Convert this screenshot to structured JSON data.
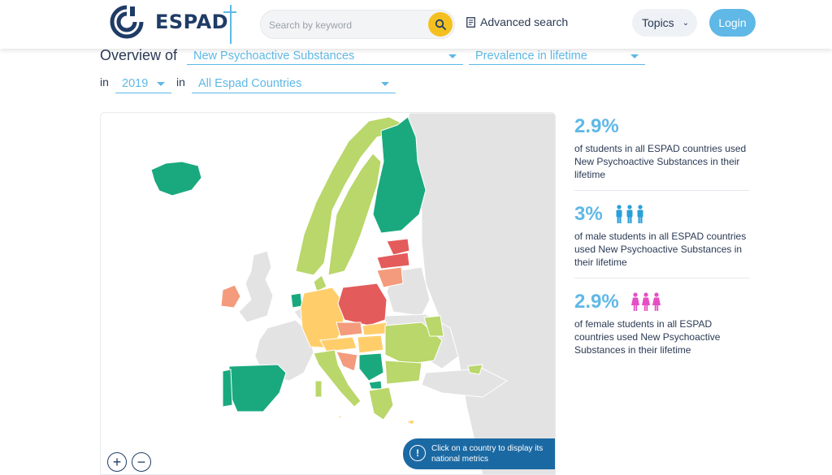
{
  "header": {
    "logo_text": "ESPAD",
    "search_placeholder": "Search by keyword",
    "advanced_search": "Advanced search",
    "topics": "Topics",
    "login": "Login"
  },
  "filters": {
    "overview_label": "Overview of",
    "substance": "New Psychoactive Substances",
    "metric": "Prevalence in lifetime",
    "in_label": "in",
    "year": "2019",
    "in_label2": "in",
    "countries": "All Espad Countries"
  },
  "map": {
    "hint": "Click on a country to display its national metrics",
    "zoom_in": "+",
    "zoom_out": "−",
    "colors": {
      "teal": "#1aa97e",
      "lightgreen": "#b9d76a",
      "yellow": "#ffce6b",
      "salmon": "#f39b7c",
      "red": "#e45b5b",
      "gray": "#e3e3e3"
    }
  },
  "stats": [
    {
      "value": "2.9%",
      "description": "of students in all ESPAD countries used New Psychoactive Substances in their lifetime",
      "icon": "none"
    },
    {
      "value": "3%",
      "description": "of male students in all ESPAD countries used New Psychoactive Substances in their lifetime",
      "icon": "male-group-icon"
    },
    {
      "value": "2.9%",
      "description": "of female students in all ESPAD countries used New Psychoactive Substances in their lifetime",
      "icon": "female-group-icon"
    }
  ],
  "colors": {
    "accent": "#5fb8e6",
    "navy": "#1f3c66",
    "search_button": "#f4c020",
    "male_icon": "#2a9fd8",
    "female_icon": "#e64fc4"
  }
}
